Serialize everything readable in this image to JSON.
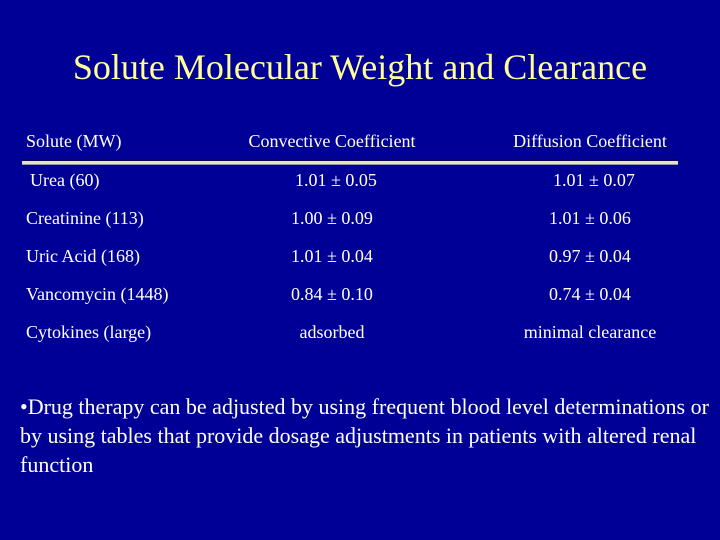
{
  "slide": {
    "title": "Solute Molecular Weight and Clearance"
  },
  "table": {
    "headers": {
      "solute": "Solute (MW)",
      "convective": "Convective Coefficient",
      "diffusion": "Diffusion Coefficient"
    },
    "rows": [
      {
        "solute": "Urea (60)",
        "convective": "1.01 ± 0.05",
        "diffusion": "1.01 ± 0.07"
      },
      {
        "solute": "Creatinine (113)",
        "convective": "1.00 ± 0.09",
        "diffusion": "1.01 ± 0.06"
      },
      {
        "solute": "Uric Acid (168)",
        "convective": "1.01 ± 0.04",
        "diffusion": "0.97 ± 0.04"
      },
      {
        "solute": "Vancomycin (1448)",
        "convective": "0.84 ± 0.10",
        "diffusion": "0.74 ± 0.04"
      },
      {
        "solute": "Cytokines (large)",
        "convective": "adsorbed",
        "diffusion": "minimal clearance"
      }
    ]
  },
  "footer": {
    "bullet_marker": "•",
    "text": "Drug therapy can be adjusted by using frequent blood level determinations or by using tables that provide dosage adjustments in patients with altered renal function"
  },
  "colors": {
    "background": "#000096",
    "title_text": "#FFFF99",
    "body_text": "#FFFFFF",
    "divider": "#E4E4C2"
  }
}
